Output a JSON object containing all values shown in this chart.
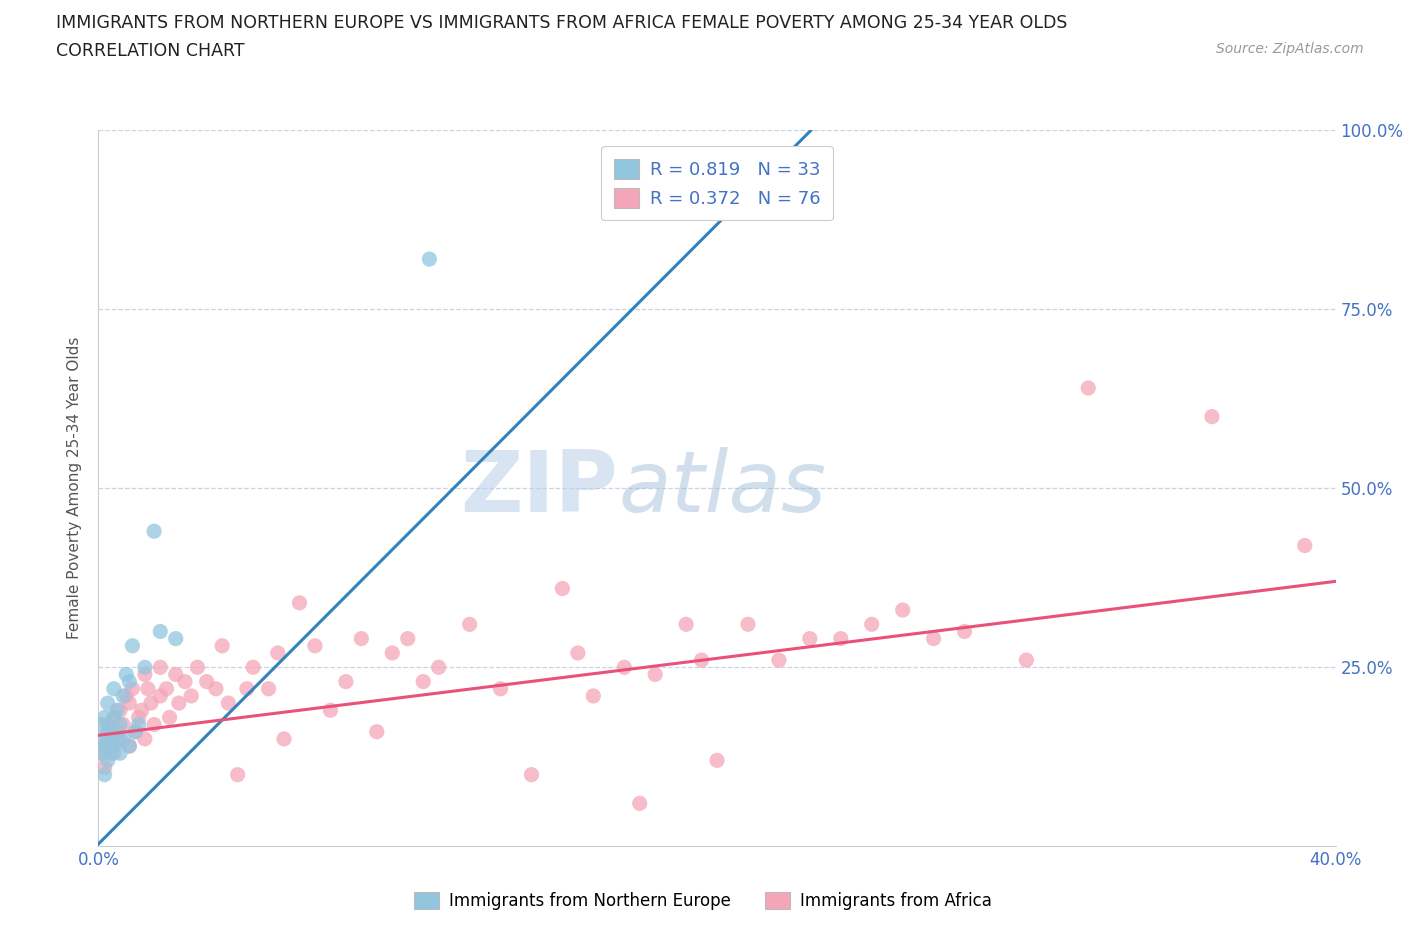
{
  "title_line1": "IMMIGRANTS FROM NORTHERN EUROPE VS IMMIGRANTS FROM AFRICA FEMALE POVERTY AMONG 25-34 YEAR OLDS",
  "title_line2": "CORRELATION CHART",
  "source_text": "Source: ZipAtlas.com",
  "ylabel": "Female Poverty Among 25-34 Year Olds",
  "xlim": [
    0,
    0.4
  ],
  "ylim": [
    0,
    1.0
  ],
  "R_blue": 0.819,
  "N_blue": 33,
  "R_pink": 0.372,
  "N_pink": 76,
  "blue_color": "#92c5de",
  "blue_line_color": "#3182bd",
  "pink_color": "#f4a6b8",
  "pink_line_color": "#e8527a",
  "legend_label_blue": "Immigrants from Northern Europe",
  "legend_label_pink": "Immigrants from Africa",
  "watermark_zip": "ZIP",
  "watermark_atlas": "atlas",
  "background_color": "#ffffff",
  "grid_color": "#c8d4e8",
  "blue_scatter_x": [
    0.001,
    0.001,
    0.001,
    0.002,
    0.002,
    0.002,
    0.003,
    0.003,
    0.003,
    0.004,
    0.004,
    0.005,
    0.005,
    0.005,
    0.006,
    0.006,
    0.007,
    0.007,
    0.008,
    0.008,
    0.009,
    0.01,
    0.01,
    0.011,
    0.012,
    0.013,
    0.015,
    0.018,
    0.02,
    0.025,
    0.107,
    0.195,
    0.215
  ],
  "blue_scatter_y": [
    0.13,
    0.15,
    0.17,
    0.1,
    0.14,
    0.18,
    0.12,
    0.16,
    0.2,
    0.13,
    0.16,
    0.14,
    0.18,
    0.22,
    0.15,
    0.19,
    0.13,
    0.17,
    0.15,
    0.21,
    0.24,
    0.14,
    0.23,
    0.28,
    0.16,
    0.17,
    0.25,
    0.44,
    0.3,
    0.29,
    0.82,
    0.95,
    0.95
  ],
  "pink_scatter_x": [
    0.001,
    0.002,
    0.003,
    0.003,
    0.004,
    0.005,
    0.005,
    0.006,
    0.007,
    0.007,
    0.008,
    0.009,
    0.01,
    0.01,
    0.011,
    0.012,
    0.013,
    0.014,
    0.015,
    0.015,
    0.016,
    0.017,
    0.018,
    0.02,
    0.02,
    0.022,
    0.023,
    0.025,
    0.026,
    0.028,
    0.03,
    0.032,
    0.035,
    0.038,
    0.04,
    0.042,
    0.045,
    0.048,
    0.05,
    0.055,
    0.058,
    0.06,
    0.065,
    0.07,
    0.075,
    0.08,
    0.085,
    0.09,
    0.095,
    0.1,
    0.105,
    0.11,
    0.12,
    0.13,
    0.14,
    0.15,
    0.155,
    0.16,
    0.17,
    0.175,
    0.18,
    0.19,
    0.195,
    0.2,
    0.21,
    0.22,
    0.23,
    0.24,
    0.25,
    0.26,
    0.27,
    0.28,
    0.3,
    0.32,
    0.36,
    0.39
  ],
  "pink_scatter_y": [
    0.13,
    0.11,
    0.15,
    0.17,
    0.14,
    0.13,
    0.18,
    0.16,
    0.15,
    0.19,
    0.17,
    0.21,
    0.14,
    0.2,
    0.22,
    0.16,
    0.18,
    0.19,
    0.15,
    0.24,
    0.22,
    0.2,
    0.17,
    0.21,
    0.25,
    0.22,
    0.18,
    0.24,
    0.2,
    0.23,
    0.21,
    0.25,
    0.23,
    0.22,
    0.28,
    0.2,
    0.1,
    0.22,
    0.25,
    0.22,
    0.27,
    0.15,
    0.34,
    0.28,
    0.19,
    0.23,
    0.29,
    0.16,
    0.27,
    0.29,
    0.23,
    0.25,
    0.31,
    0.22,
    0.1,
    0.36,
    0.27,
    0.21,
    0.25,
    0.06,
    0.24,
    0.31,
    0.26,
    0.12,
    0.31,
    0.26,
    0.29,
    0.29,
    0.31,
    0.33,
    0.29,
    0.3,
    0.26,
    0.64,
    0.6,
    0.42
  ],
  "blue_line_x": [
    -0.01,
    0.235
  ],
  "blue_line_y": [
    -0.04,
    1.02
  ],
  "pink_line_x": [
    0.0,
    0.4
  ],
  "pink_line_y": [
    0.155,
    0.37
  ]
}
